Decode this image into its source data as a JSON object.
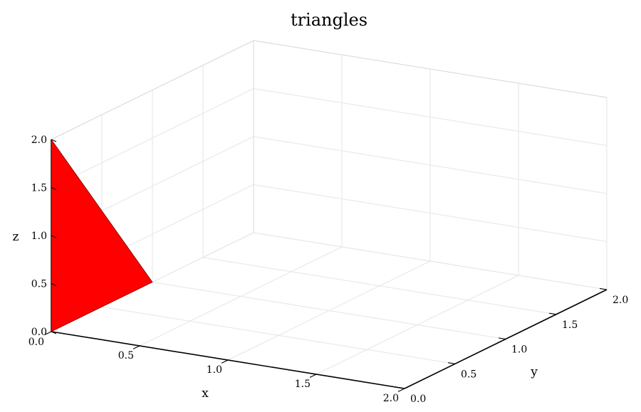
{
  "chart_data": {
    "type": "surface",
    "title": "triangles",
    "xlabel": "x",
    "ylabel": "y",
    "zlabel": "z",
    "xlim": [
      0,
      2
    ],
    "ylim": [
      0,
      2
    ],
    "zlim": [
      0,
      2
    ],
    "x_ticks": [
      "0.0",
      "0.5",
      "1.0",
      "1.5",
      "2.0"
    ],
    "y_ticks": [
      "0.0",
      "0.5",
      "1.0",
      "1.5",
      "2.0"
    ],
    "z_ticks": [
      "0.0",
      "0.5",
      "1.0",
      "1.5",
      "2.0"
    ],
    "grid": true,
    "series": [
      {
        "color": "#ff0000",
        "triangles": [
          [
            [
              0,
              0,
              0
            ],
            [
              0,
              1,
              0
            ],
            [
              0,
              0,
              2
            ]
          ],
          [
            [
              0,
              1,
              0
            ],
            [
              0,
              0,
              2
            ],
            [
              0,
              0,
              0
            ]
          ]
        ]
      }
    ]
  }
}
